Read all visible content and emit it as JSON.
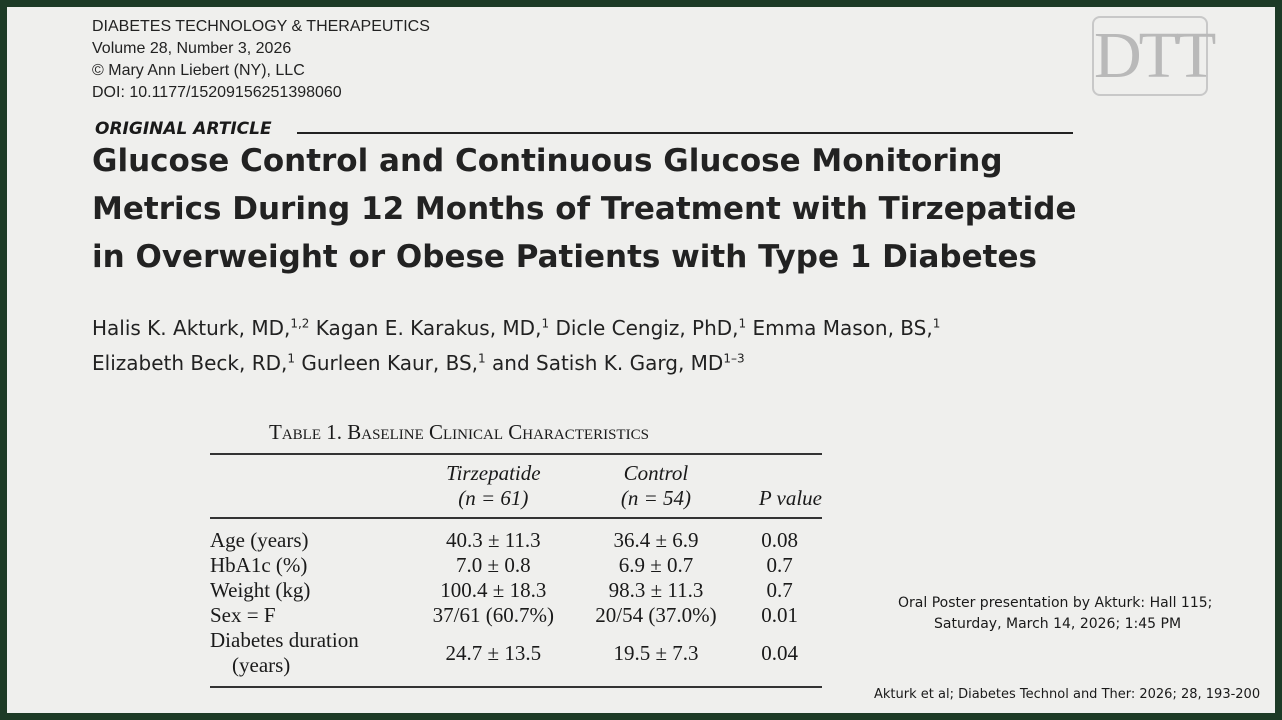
{
  "journal": {
    "name": "DIABETES TECHNOLOGY & THERAPEUTICS",
    "volume": "Volume 28, Number 3, 2026",
    "copyright": "© Mary Ann Liebert (NY), LLC",
    "doi": "DOI: 10.1177/15209156251398060"
  },
  "logo": "DTT",
  "article_type": "ORIGINAL ARTICLE",
  "title_lines": [
    "Glucose Control and Continuous Glucose Monitoring",
    "Metrics During 12 Months of Treatment with Tirzepatide",
    "in Overweight or Obese Patients with Type 1 Diabetes"
  ],
  "author_lines": [
    [
      {
        "text": "Halis K. Akturk, MD,",
        "sup": "1,2"
      },
      {
        "text": "Kagan E. Karakus, MD,",
        "sup": "1"
      },
      {
        "text": "Dicle Cengiz, PhD,",
        "sup": "1"
      },
      {
        "text": "Emma Mason, BS,",
        "sup": "1"
      }
    ],
    [
      {
        "text": "Elizabeth Beck, RD,",
        "sup": "1"
      },
      {
        "text": "Gurleen Kaur, BS,",
        "sup": "1"
      },
      {
        "text": "and Satish K. Garg, MD",
        "sup": "1–3"
      }
    ]
  ],
  "table": {
    "caption": "Table 1. Baseline Clinical Characteristics",
    "columns": [
      {
        "name": "Tirzepatide",
        "n": "(n = 61)"
      },
      {
        "name": "Control",
        "n": "(n = 54)"
      },
      {
        "name": "P value"
      }
    ],
    "rows": [
      [
        "Age (years)",
        "40.3 ± 11.3",
        "36.4 ± 6.9",
        "0.08"
      ],
      [
        "HbA1c (%)",
        "7.0 ± 0.8",
        "6.9 ± 0.7",
        "0.7"
      ],
      [
        "Weight (kg)",
        "100.4 ± 18.3",
        "98.3 ± 11.3",
        "0.7"
      ],
      [
        "Sex = F",
        "37/61 (60.7%)",
        "20/54 (37.0%)",
        "0.01"
      ],
      [
        "Diabetes duration (years)",
        "24.7 ± 13.5",
        "19.5 ± 7.3",
        "0.04"
      ]
    ]
  },
  "presentation_note": [
    "Oral Poster presentation by Akturk: Hall 115;",
    "Saturday, March 14, 2026; 1:45 PM"
  ],
  "citation": "Akturk et al; Diabetes Technol and Ther: 2026; 28, 193-200"
}
